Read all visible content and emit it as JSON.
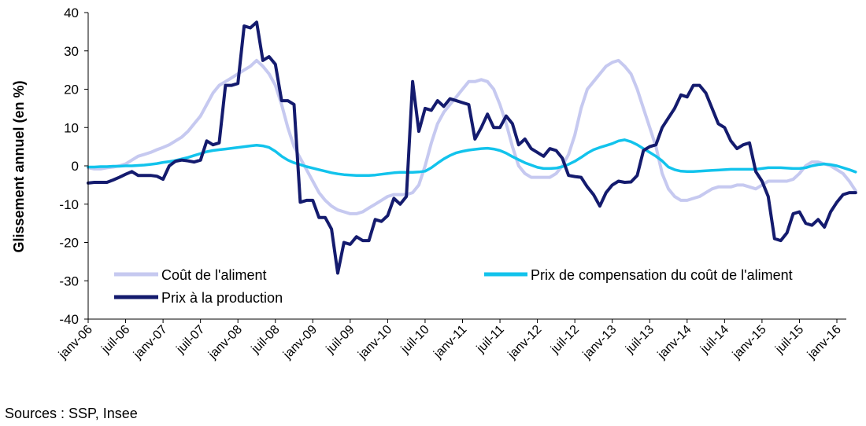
{
  "chart_data": {
    "type": "line",
    "ylabel": "Glissement annuel (en %)",
    "ylim": [
      -40,
      40
    ],
    "yticks": [
      40,
      30,
      20,
      10,
      0,
      -10,
      -20,
      -30,
      -40
    ],
    "xticks": [
      "janv-06",
      "juil-06",
      "janv-07",
      "juil-07",
      "janv-08",
      "juil-08",
      "janv-09",
      "juil-09",
      "janv-10",
      "juil-10",
      "janv-11",
      "juil-11",
      "janv-12",
      "juil-12",
      "janv-13",
      "juil-13",
      "janv-14",
      "juil-14",
      "janv-15",
      "juil-15",
      "janv-16"
    ],
    "x_start": "2006-01",
    "x_step": "month",
    "grid": false,
    "legend": [
      "Coût de l'aliment",
      "Prix de compensation du coût de l'aliment",
      "Prix à la production"
    ],
    "series": [
      {
        "name": "Coût de l'aliment",
        "color": "#c6c9f0",
        "values": [
          -0.5,
          -0.8,
          -0.8,
          -0.5,
          -0.3,
          0,
          0.5,
          1.5,
          2.5,
          3,
          3.5,
          4.2,
          4.8,
          5.5,
          6.5,
          7.5,
          9,
          11,
          13,
          16,
          19,
          21,
          22,
          23,
          24,
          25,
          26,
          27.5,
          26,
          24,
          21,
          16,
          10,
          5,
          2,
          -1,
          -4,
          -7,
          -9,
          -10.5,
          -11.5,
          -12,
          -12.5,
          -12.5,
          -12,
          -11,
          -10,
          -9,
          -8,
          -7.5,
          -7.5,
          -7.5,
          -7,
          -5,
          0,
          6,
          11,
          14,
          16,
          18,
          20,
          22,
          22,
          22.5,
          22,
          20,
          16,
          11,
          5,
          0,
          -2,
          -3,
          -3,
          -3,
          -3,
          -2,
          0,
          3,
          8,
          15,
          20,
          22,
          24,
          26,
          27,
          27.5,
          26,
          24,
          20,
          15,
          10,
          5,
          -2,
          -6,
          -8,
          -9,
          -9,
          -8.5,
          -8,
          -7,
          -6,
          -5.5,
          -5.5,
          -5.5,
          -5,
          -5,
          -5.5,
          -6,
          -5,
          -4,
          -4,
          -4,
          -4,
          -3.5,
          -2,
          0,
          1,
          1,
          0.5,
          0,
          -1,
          -2,
          -4,
          -6.5
        ]
      },
      {
        "name": "Prix de compensation du coût de l'aliment",
        "color": "#12c3ec",
        "values": [
          -0.3,
          -0.3,
          -0.2,
          -0.2,
          -0.1,
          -0.1,
          0,
          0,
          0.1,
          0.2,
          0.4,
          0.6,
          0.9,
          1.1,
          1.4,
          1.8,
          2.2,
          2.7,
          3.2,
          3.7,
          4,
          4.2,
          4.4,
          4.6,
          4.8,
          5,
          5.2,
          5.4,
          5.2,
          4.8,
          3.8,
          2.5,
          1.5,
          0.8,
          0.3,
          -0.2,
          -0.6,
          -1,
          -1.4,
          -1.8,
          -2.1,
          -2.3,
          -2.4,
          -2.5,
          -2.5,
          -2.5,
          -2.4,
          -2.2,
          -2,
          -1.8,
          -1.7,
          -1.7,
          -1.7,
          -1.6,
          -1.4,
          -0.5,
          0.7,
          1.8,
          2.7,
          3.4,
          3.8,
          4.1,
          4.3,
          4.5,
          4.6,
          4.4,
          4,
          3.3,
          2.4,
          1.6,
          0.8,
          0.2,
          -0.4,
          -0.7,
          -0.7,
          -0.6,
          -0.2,
          0.4,
          1.2,
          2.2,
          3.3,
          4.2,
          4.8,
          5.3,
          5.8,
          6.5,
          6.8,
          6.3,
          5.5,
          4.5,
          3.5,
          2.5,
          1.3,
          -0.3,
          -1,
          -1.4,
          -1.5,
          -1.5,
          -1.4,
          -1.3,
          -1.2,
          -1.1,
          -1,
          -0.9,
          -0.9,
          -0.9,
          -0.9,
          -0.9,
          -0.7,
          -0.5,
          -0.5,
          -0.5,
          -0.6,
          -0.7,
          -0.7,
          -0.5,
          0,
          0.3,
          0.5,
          0.3,
          0,
          -0.5,
          -1,
          -1.6
        ]
      },
      {
        "name": "Prix à la production",
        "color": "#141b6e",
        "values": [
          -4.5,
          -4.3,
          -4.3,
          -4.3,
          -3.7,
          -3,
          -2.2,
          -1.5,
          -2.5,
          -2.5,
          -2.5,
          -2.7,
          -3.5,
          0,
          1.2,
          1.5,
          1.3,
          1,
          1.5,
          6.5,
          5.5,
          6,
          21,
          21,
          21.5,
          36.5,
          36,
          37.5,
          27.5,
          28.5,
          26.5,
          17,
          17,
          16,
          -9.5,
          -9,
          -9,
          -13.5,
          -13.5,
          -16.5,
          -28,
          -20,
          -20.5,
          -18.5,
          -19.5,
          -19.5,
          -14,
          -14.5,
          -13,
          -8.5,
          -10,
          -8,
          22,
          9,
          15,
          14.5,
          17,
          15.5,
          17.5,
          17,
          16.5,
          16,
          7,
          10,
          13.5,
          10,
          10,
          13,
          11,
          5.5,
          7,
          4.5,
          3.5,
          2.5,
          4.5,
          4,
          2,
          -2.5,
          -2.8,
          -3,
          -5.5,
          -7.5,
          -10.5,
          -7,
          -5,
          -4,
          -4.3,
          -4.2,
          -2.5,
          4,
          5,
          5.5,
          10,
          12.5,
          15,
          18.5,
          18,
          21,
          21,
          19,
          15,
          11,
          10,
          6.5,
          4.5,
          5.5,
          6,
          -1.5,
          -4,
          -8,
          -19,
          -19.5,
          -17.5,
          -12.5,
          -12,
          -15,
          -15.5,
          -14,
          -16,
          -12,
          -9.5,
          -7.5,
          -7,
          -7
        ]
      }
    ]
  },
  "source_note": "Sources : SSP, Insee"
}
